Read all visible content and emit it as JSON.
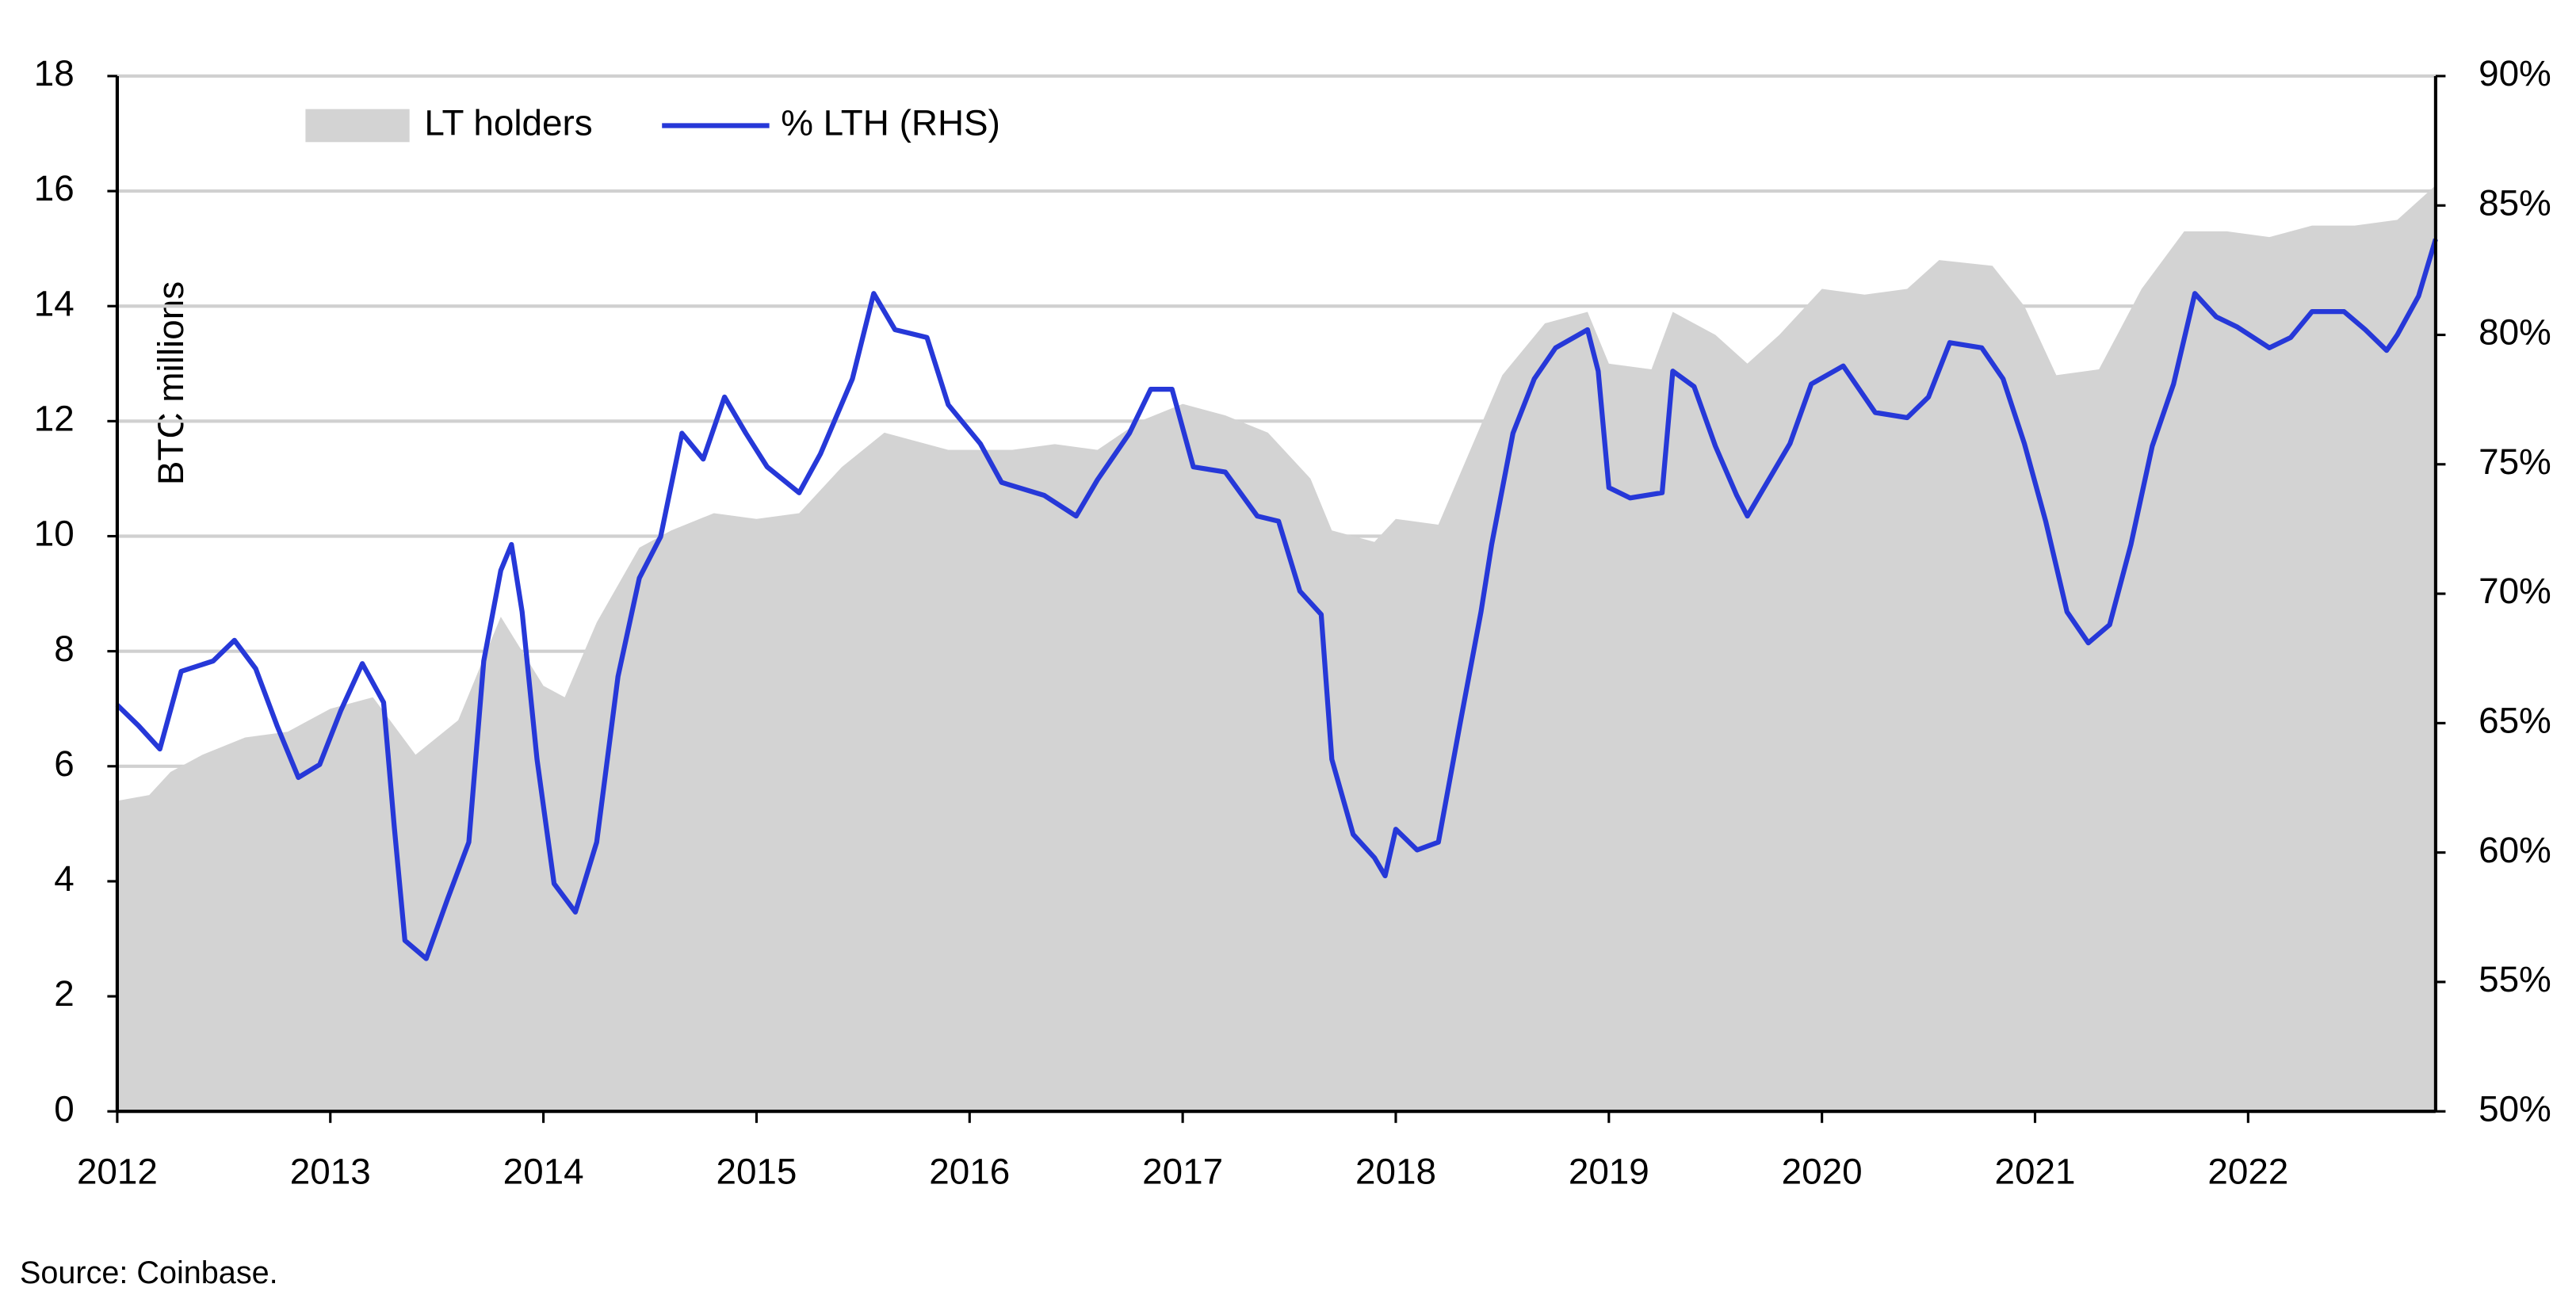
{
  "chart_data": {
    "type": "area-line",
    "y_label": "BTC millions",
    "source": "Source: Coinbase.",
    "xlim": [
      2012,
      2022.88
    ],
    "xticks": [
      2012,
      2013,
      2014,
      2015,
      2016,
      2017,
      2018,
      2019,
      2020,
      2021,
      2022
    ],
    "ylim": [
      0,
      18
    ],
    "yticks": [
      0,
      2,
      4,
      6,
      8,
      10,
      12,
      14,
      16,
      18
    ],
    "y2lim": [
      50,
      90
    ],
    "y2ticks": [
      {
        "value": 50,
        "label": "50%"
      },
      {
        "value": 55,
        "label": "55%"
      },
      {
        "value": 60,
        "label": "60%"
      },
      {
        "value": 65,
        "label": "65%"
      },
      {
        "value": 70,
        "label": "70%"
      },
      {
        "value": 75,
        "label": "75%"
      },
      {
        "value": 80,
        "label": "80%"
      },
      {
        "value": 85,
        "label": "85%"
      },
      {
        "value": 90,
        "label": "90%"
      }
    ],
    "grid": true,
    "legend": "top-left",
    "series": [
      {
        "name": "LT holders",
        "kind": "area",
        "color": "#d3d3d3",
        "x": [
          2012.0,
          2012.15,
          2012.25,
          2012.4,
          2012.6,
          2012.8,
          2013.0,
          2013.2,
          2013.4,
          2013.6,
          2013.8,
          2014.0,
          2014.1,
          2014.25,
          2014.45,
          2014.6,
          2014.8,
          2015.0,
          2015.2,
          2015.4,
          2015.6,
          2015.9,
          2016.2,
          2016.4,
          2016.6,
          2016.8,
          2017.0,
          2017.2,
          2017.4,
          2017.6,
          2017.7,
          2017.9,
          2018.0,
          2018.2,
          2018.35,
          2018.5,
          2018.7,
          2018.9,
          2019.0,
          2019.2,
          2019.3,
          2019.5,
          2019.65,
          2019.8,
          2020.0,
          2020.2,
          2020.4,
          2020.55,
          2020.8,
          2020.95,
          2021.1,
          2021.3,
          2021.5,
          2021.7,
          2021.9,
          2022.1,
          2022.3,
          2022.5,
          2022.7,
          2022.88
        ],
        "values": [
          5.4,
          5.5,
          5.9,
          6.2,
          6.5,
          6.6,
          7.0,
          7.2,
          6.2,
          6.8,
          8.6,
          7.4,
          7.2,
          8.5,
          9.8,
          10.1,
          10.4,
          10.3,
          10.4,
          11.2,
          11.8,
          11.5,
          11.5,
          11.6,
          11.5,
          12.0,
          12.3,
          12.1,
          11.8,
          11.0,
          10.1,
          9.9,
          10.3,
          10.2,
          11.5,
          12.8,
          13.7,
          13.9,
          13.0,
          12.9,
          13.9,
          13.5,
          13.0,
          13.5,
          14.3,
          14.2,
          14.3,
          14.8,
          14.7,
          14.0,
          12.8,
          12.9,
          14.3,
          15.3,
          15.3,
          15.2,
          15.4,
          15.4,
          15.5,
          16.1
        ]
      },
      {
        "name": "% LTH (RHS)",
        "kind": "line",
        "axis": "y2",
        "color": "#2638d8",
        "x": [
          2012.0,
          2012.1,
          2012.2,
          2012.3,
          2012.45,
          2012.55,
          2012.65,
          2012.75,
          2012.85,
          2012.95,
          2013.05,
          2013.15,
          2013.25,
          2013.3,
          2013.35,
          2013.45,
          2013.55,
          2013.65,
          2013.72,
          2013.8,
          2013.85,
          2013.9,
          2013.97,
          2014.05,
          2014.15,
          2014.25,
          2014.35,
          2014.45,
          2014.55,
          2014.65,
          2014.75,
          2014.85,
          2014.95,
          2015.05,
          2015.2,
          2015.3,
          2015.45,
          2015.55,
          2015.65,
          2015.8,
          2015.9,
          2016.05,
          2016.15,
          2016.35,
          2016.5,
          2016.6,
          2016.75,
          2016.85,
          2016.95,
          2017.05,
          2017.2,
          2017.35,
          2017.45,
          2017.55,
          2017.65,
          2017.7,
          2017.8,
          2017.9,
          2017.95,
          2018.0,
          2018.1,
          2018.2,
          2018.3,
          2018.4,
          2018.45,
          2018.55,
          2018.65,
          2018.75,
          2018.9,
          2018.95,
          2019.0,
          2019.1,
          2019.25,
          2019.3,
          2019.4,
          2019.5,
          2019.6,
          2019.65,
          2019.75,
          2019.85,
          2019.95,
          2020.1,
          2020.25,
          2020.4,
          2020.5,
          2020.6,
          2020.75,
          2020.85,
          2020.95,
          2021.05,
          2021.15,
          2021.25,
          2021.35,
          2021.45,
          2021.55,
          2021.65,
          2021.75,
          2021.85,
          2021.95,
          2022.1,
          2022.2,
          2022.3,
          2022.45,
          2022.55,
          2022.65,
          2022.7,
          2022.8,
          2022.88
        ],
        "values": [
          65.7,
          64.9,
          64.0,
          67.0,
          67.4,
          68.2,
          67.1,
          64.9,
          62.9,
          63.4,
          65.5,
          67.3,
          65.8,
          61.0,
          56.6,
          55.9,
          58.2,
          60.4,
          67.4,
          70.9,
          71.9,
          69.3,
          63.6,
          58.8,
          57.7,
          60.4,
          66.8,
          70.6,
          72.2,
          76.2,
          75.2,
          77.6,
          76.2,
          74.9,
          73.9,
          75.4,
          78.3,
          81.6,
          80.2,
          79.9,
          77.3,
          75.8,
          74.3,
          73.8,
          73.0,
          74.4,
          76.2,
          77.9,
          77.9,
          74.9,
          74.7,
          73.0,
          72.8,
          70.1,
          69.2,
          63.6,
          60.7,
          59.8,
          59.1,
          60.9,
          60.1,
          60.4,
          64.9,
          69.3,
          71.9,
          76.2,
          78.3,
          79.5,
          80.2,
          78.6,
          74.1,
          73.7,
          73.9,
          78.6,
          78.0,
          75.7,
          73.8,
          73.0,
          74.4,
          75.8,
          78.1,
          78.8,
          77.0,
          76.8,
          77.6,
          79.7,
          79.5,
          78.3,
          75.8,
          72.8,
          69.3,
          68.1,
          68.8,
          71.9,
          75.7,
          78.1,
          81.6,
          80.7,
          80.3,
          79.5,
          79.9,
          80.9,
          80.9,
          80.2,
          79.4,
          80.0,
          81.5,
          83.7
        ]
      }
    ]
  }
}
